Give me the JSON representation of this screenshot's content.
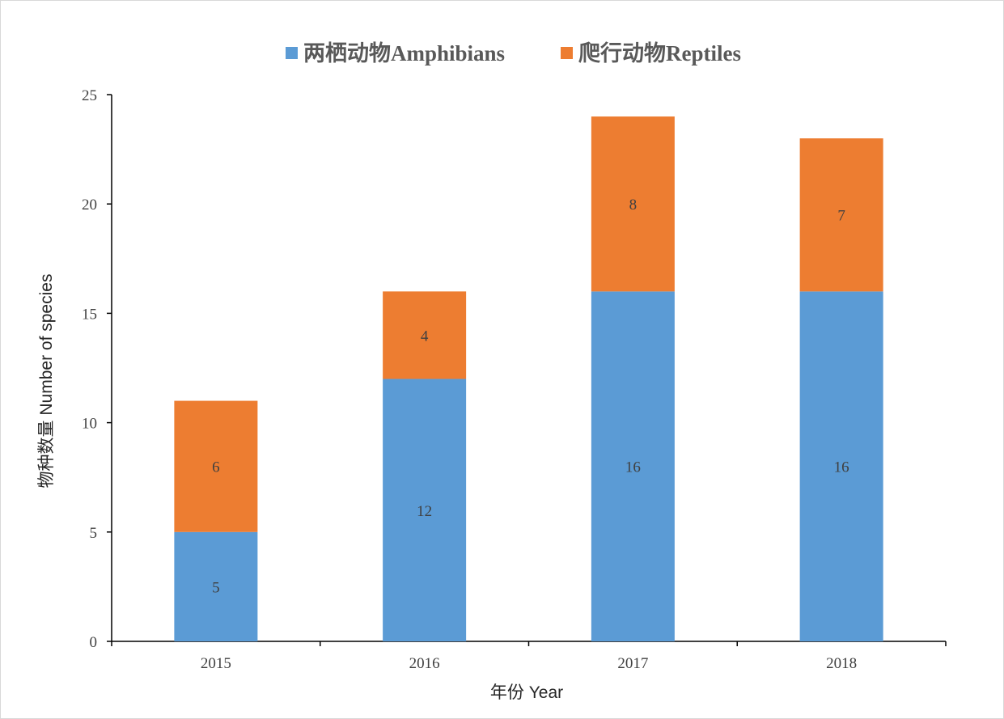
{
  "chart_data": {
    "type": "bar",
    "stacked": true,
    "categories": [
      "2015",
      "2016",
      "2017",
      "2018"
    ],
    "series": [
      {
        "name": "两栖动物Amphibians",
        "values": [
          5,
          12,
          16,
          16
        ],
        "color": "#5b9bd5"
      },
      {
        "name": "爬行动物Reptiles",
        "values": [
          6,
          4,
          8,
          7
        ],
        "color": "#ed7d31"
      }
    ],
    "title": "",
    "xlabel": "年份  Year",
    "ylabel": "物种数量   Number of species",
    "ylim": [
      0,
      25
    ],
    "yticks": [
      0,
      5,
      10,
      15,
      20,
      25
    ],
    "grid": false,
    "legend_position": "top",
    "data_labels": true
  }
}
